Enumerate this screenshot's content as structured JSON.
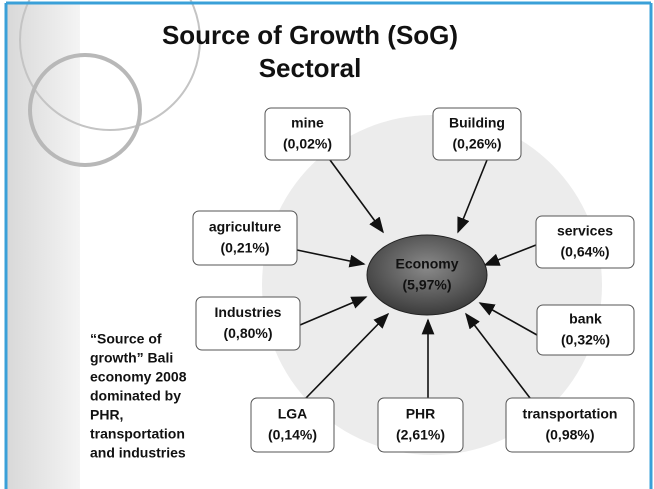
{
  "header": {
    "title": [
      "Source of Growth (SoG)",
      "Sectoral"
    ]
  },
  "center": {
    "label": "Economy",
    "value": "(5,97%)"
  },
  "nodes": [
    {
      "label": "mine",
      "value": "(0,02%)"
    },
    {
      "label": "Building",
      "value": "(0,26%)"
    },
    {
      "label": "agriculture",
      "value": "(0,21%)"
    },
    {
      "label": "services",
      "value": "(0,64%)"
    },
    {
      "label": "Industries",
      "value": "(0,80%)"
    },
    {
      "label": "bank",
      "value": "(0,32%)"
    },
    {
      "label": "LGA",
      "value": "(0,14%)"
    },
    {
      "label": "PHR",
      "value": "(2,61%)"
    },
    {
      "label": "transportation",
      "value": "(0,98%)"
    }
  ],
  "note": [
    "“Source of",
    "growth” Bali",
    "economy 2008",
    "dominated by",
    "PHR,",
    "transportation",
    "and industries"
  ]
}
